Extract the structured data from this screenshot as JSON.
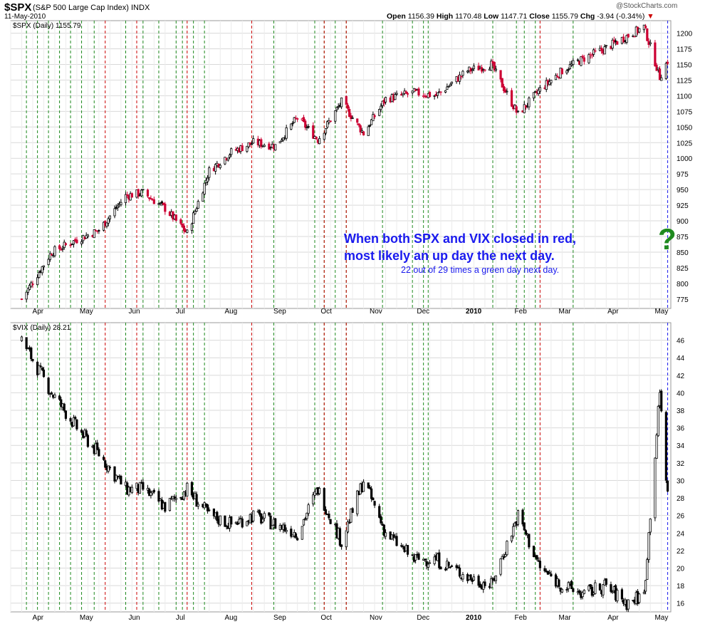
{
  "header": {
    "symbol": "$SPX",
    "fullname": "(S&P 500 Large Cap Index) INDX",
    "date": "11-May-2010",
    "open_label": "Open",
    "open": "1156.39",
    "high_label": "High",
    "high": "1170.48",
    "low_label": "Low",
    "low": "1147.71",
    "close_label": "Close",
    "close": "1155.79",
    "chg_label": "Chg",
    "chg": "-3.94 (-0.34%)",
    "watermark": "@StockCharts.com"
  },
  "annotations": {
    "line1": "When both SPX and VIX closed in red,",
    "line2": "most likely an up day the next day.",
    "line3": "22 out of 29 times a green day next day.",
    "question": "?"
  },
  "colors": {
    "up": "#000000",
    "down": "#cc0033",
    "green_marker": "#1f8a1f",
    "red_marker": "#cc0000",
    "blue_marker": "#1a1aee",
    "grid": "#d9d9d9"
  },
  "chart_data": [
    {
      "type": "candlestick",
      "label": "$SPX (Daily) 1155.79",
      "x_tick_labels": [
        "Apr",
        "May",
        "Jun",
        "Jul",
        "Aug",
        "Sep",
        "Oct",
        "Nov",
        "Dec",
        "2010",
        "Feb",
        "Mar",
        "Apr",
        "May"
      ],
      "y_ticks": [
        775,
        800,
        825,
        850,
        875,
        900,
        925,
        950,
        975,
        1000,
        1025,
        1050,
        1075,
        1100,
        1125,
        1150,
        1175,
        1200
      ],
      "ylim": [
        760,
        1220
      ],
      "x": [
        "2009-03-27",
        "2009-04-15",
        "2009-05-01",
        "2009-05-15",
        "2009-06-01",
        "2009-06-12",
        "2009-06-26",
        "2009-07-10",
        "2009-07-24",
        "2009-08-07",
        "2009-08-21",
        "2009-09-04",
        "2009-09-18",
        "2009-10-01",
        "2009-10-16",
        "2009-10-30",
        "2009-11-13",
        "2009-12-01",
        "2009-12-15",
        "2010-01-04",
        "2010-01-19",
        "2010-02-05",
        "2010-02-19",
        "2010-03-05",
        "2010-03-19",
        "2010-04-01",
        "2010-04-15",
        "2010-04-26",
        "2010-05-06",
        "2010-05-11"
      ],
      "close": [
        775,
        850,
        870,
        885,
        940,
        945,
        920,
        880,
        980,
        1010,
        1025,
        1020,
        1065,
        1030,
        1090,
        1040,
        1095,
        1105,
        1100,
        1140,
        1150,
        1070,
        1110,
        1140,
        1160,
        1175,
        1195,
        1210,
        1130,
        1155.79
      ]
    },
    {
      "type": "candlestick",
      "label": "$VIX (Daily) 28.21",
      "x_tick_labels": [
        "Apr",
        "May",
        "Jun",
        "Jul",
        "Aug",
        "Sep",
        "Oct",
        "Nov",
        "Dec",
        "2010",
        "Feb",
        "Mar",
        "Apr",
        "May"
      ],
      "y_ticks": [
        16,
        18,
        20,
        22,
        24,
        26,
        28,
        30,
        32,
        34,
        36,
        38,
        40,
        42,
        44,
        46
      ],
      "ylim": [
        15,
        48
      ],
      "x": [
        "2009-03-27",
        "2009-04-15",
        "2009-05-01",
        "2009-05-15",
        "2009-06-01",
        "2009-06-12",
        "2009-06-26",
        "2009-07-10",
        "2009-07-24",
        "2009-08-07",
        "2009-08-21",
        "2009-09-04",
        "2009-09-18",
        "2009-10-01",
        "2009-10-16",
        "2009-10-30",
        "2009-11-13",
        "2009-12-01",
        "2009-12-15",
        "2010-01-04",
        "2010-01-19",
        "2010-02-05",
        "2010-02-19",
        "2010-03-05",
        "2010-03-19",
        "2010-04-01",
        "2010-04-15",
        "2010-04-26",
        "2010-05-06",
        "2010-05-11"
      ],
      "close": [
        46,
        40,
        36,
        33,
        29,
        29,
        27,
        29,
        26,
        25,
        26,
        25,
        24,
        29,
        23,
        30,
        24,
        21,
        21,
        19,
        18,
        26,
        20,
        18,
        17,
        18,
        16,
        17,
        40,
        28.21
      ]
    }
  ],
  "markers": {
    "green": [
      "2009-03-30",
      "2009-04-06",
      "2009-04-13",
      "2009-04-20",
      "2009-04-27",
      "2009-05-04",
      "2009-05-12",
      "2009-06-01",
      "2009-06-12",
      "2009-06-22",
      "2009-07-03",
      "2009-07-07",
      "2009-07-14",
      "2009-07-21",
      "2009-08-20",
      "2009-09-03",
      "2009-09-29",
      "2009-10-05",
      "2009-10-12",
      "2009-10-19",
      "2009-11-11",
      "2009-11-30",
      "2009-12-07",
      "2009-12-10",
      "2010-01-20",
      "2010-02-04",
      "2010-02-09",
      "2010-02-16",
      "2010-03-12"
    ],
    "red": [
      "2009-05-19",
      "2009-06-08",
      "2009-07-10",
      "2009-08-20",
      "2009-10-05",
      "2009-10-19",
      "2010-02-19"
    ],
    "blue": [
      "2010-05-11"
    ]
  }
}
